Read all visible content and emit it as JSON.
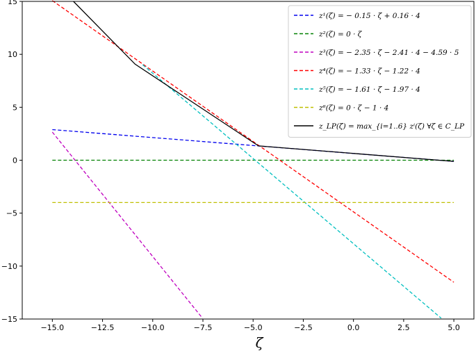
{
  "chart_data": {
    "type": "line",
    "xlabel": "ζ",
    "xlim": [
      -16.5,
      6.0
    ],
    "ylim": [
      -15,
      15
    ],
    "xticks": [
      -15.0,
      -12.5,
      -10.0,
      -7.5,
      -5.0,
      -2.5,
      0.0,
      2.5,
      5.0
    ],
    "xtick_labels": [
      "−15.0",
      "−12.5",
      "−10.0",
      "−7.5",
      "−5.0",
      "−2.5",
      "0.0",
      "2.5",
      "5.0"
    ],
    "yticks": [
      -15,
      -10,
      -5,
      0,
      5,
      10,
      15
    ],
    "ytick_labels": [
      "−15",
      "−10",
      "−5",
      "0",
      "5",
      "10",
      "15"
    ],
    "grid": false,
    "legend_position": "top-right",
    "series": [
      {
        "name": "z¹(ζ) = − 0.15 · ζ + 0.16 · 4",
        "color": "#0000ee",
        "dash": true,
        "points": [
          [
            -15,
            2.89
          ],
          [
            5,
            -0.11
          ]
        ]
      },
      {
        "name": "z²(ζ) = 0 · ζ",
        "color": "#008000",
        "dash": true,
        "points": [
          [
            -15,
            0
          ],
          [
            5,
            0
          ]
        ]
      },
      {
        "name": "z³(ζ) = − 2.35 · ζ − 2.41 · 4 − 4.59 · 5",
        "color": "#bf00bf",
        "dash": true,
        "points": [
          [
            -15,
            2.66
          ],
          [
            -7.52,
            -14.92
          ]
        ]
      },
      {
        "name": "z⁴(ζ) = − 1.33 · ζ − 1.22 · 4",
        "color": "#ff0000",
        "dash": true,
        "points": [
          [
            -15,
            15.07
          ],
          [
            5,
            -11.53
          ]
        ]
      },
      {
        "name": "z⁵(ζ) = − 1.61 · ζ − 1.97 · 4",
        "color": "#00bfbf",
        "dash": true,
        "points": [
          [
            -10.5,
            9.02
          ],
          [
            4.37,
            -14.92
          ]
        ]
      },
      {
        "name": "z⁶(ζ) = 0 · ζ − 1 · 4",
        "color": "#bfbf00",
        "dash": true,
        "points": [
          [
            -15,
            -4
          ],
          [
            5,
            -4
          ]
        ]
      },
      {
        "name": "z_LP(ζ) = max_{i=1..6} zⁱ(ζ)  ∀ζ ∈ C_LP",
        "color": "#000000",
        "dash": false,
        "points": [
          [
            -13.95,
            15.0
          ],
          [
            -10.88,
            9.07
          ],
          [
            -4.73,
            1.35
          ],
          [
            5,
            -0.11
          ]
        ]
      }
    ]
  }
}
